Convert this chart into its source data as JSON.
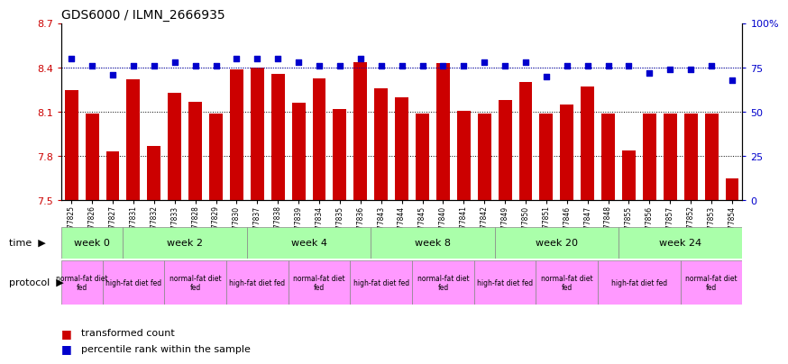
{
  "title": "GDS6000 / ILMN_2666935",
  "samples": [
    "GSM1577825",
    "GSM1577826",
    "GSM1577827",
    "GSM1577831",
    "GSM1577832",
    "GSM1577833",
    "GSM1577828",
    "GSM1577829",
    "GSM1577830",
    "GSM1577837",
    "GSM1577838",
    "GSM1577839",
    "GSM1577834",
    "GSM1577835",
    "GSM1577836",
    "GSM1577843",
    "GSM1577844",
    "GSM1577845",
    "GSM1577840",
    "GSM1577841",
    "GSM1577842",
    "GSM1577849",
    "GSM1577850",
    "GSM1577851",
    "GSM1577846",
    "GSM1577847",
    "GSM1577848",
    "GSM1577855",
    "GSM1577856",
    "GSM1577857",
    "GSM1577852",
    "GSM1577853",
    "GSM1577854"
  ],
  "bar_values": [
    8.25,
    8.09,
    7.83,
    8.32,
    7.87,
    8.23,
    8.17,
    8.09,
    8.39,
    8.4,
    8.36,
    8.16,
    8.33,
    8.12,
    8.44,
    8.26,
    8.2,
    8.09,
    8.43,
    8.11,
    8.09,
    8.18,
    8.3,
    8.09,
    8.15,
    8.27,
    8.09,
    7.84,
    8.09,
    8.09,
    8.09,
    8.09,
    7.65
  ],
  "dot_values": [
    80,
    76,
    71,
    76,
    76,
    78,
    76,
    76,
    80,
    80,
    80,
    78,
    76,
    76,
    80,
    76,
    76,
    76,
    76,
    76,
    78,
    76,
    78,
    70,
    76,
    76,
    76,
    76,
    72,
    74,
    74,
    76,
    68
  ],
  "ylim_left": [
    7.5,
    8.7
  ],
  "ylim_right": [
    0,
    100
  ],
  "yticks_left": [
    7.5,
    7.8,
    8.1,
    8.4,
    8.7
  ],
  "yticks_right": [
    0,
    25,
    50,
    75,
    100
  ],
  "bar_color": "#cc0000",
  "dot_color": "#0000cc",
  "time_def": [
    {
      "label": "week 0",
      "start": 0,
      "end": 3
    },
    {
      "label": "week 2",
      "start": 3,
      "end": 9
    },
    {
      "label": "week 4",
      "start": 9,
      "end": 15
    },
    {
      "label": "week 8",
      "start": 15,
      "end": 21
    },
    {
      "label": "week 20",
      "start": 21,
      "end": 27
    },
    {
      "label": "week 24",
      "start": 27,
      "end": 33
    }
  ],
  "protocol_def": [
    {
      "label": "normal-fat diet\nfed",
      "start": 0,
      "end": 2
    },
    {
      "label": "high-fat diet fed",
      "start": 2,
      "end": 5
    },
    {
      "label": "normal-fat diet\nfed",
      "start": 5,
      "end": 8
    },
    {
      "label": "high-fat diet fed",
      "start": 8,
      "end": 11
    },
    {
      "label": "normal-fat diet\nfed",
      "start": 11,
      "end": 14
    },
    {
      "label": "high-fat diet fed",
      "start": 14,
      "end": 17
    },
    {
      "label": "normal-fat diet\nfed",
      "start": 17,
      "end": 20
    },
    {
      "label": "high-fat diet fed",
      "start": 20,
      "end": 23
    },
    {
      "label": "normal-fat diet\nfed",
      "start": 23,
      "end": 26
    },
    {
      "label": "high-fat diet fed",
      "start": 26,
      "end": 30
    },
    {
      "label": "normal-fat diet\nfed",
      "start": 30,
      "end": 33
    }
  ],
  "time_color": "#aaffaa",
  "protocol_color": "#ff99ff",
  "bg_color": "#ffffff"
}
